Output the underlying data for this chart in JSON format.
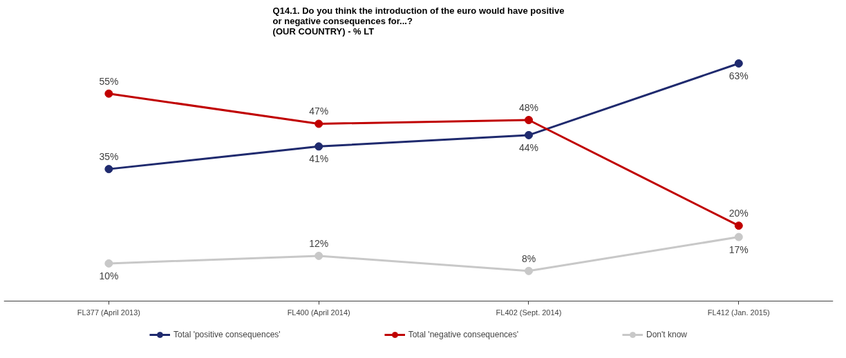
{
  "chart_data": {
    "type": "line",
    "title": "Q14.1. Do you think the introduction of the euro would have positive\nor negative consequences for...?\n(OUR COUNTRY) - % LT",
    "categories": [
      "FL377 (April 2013)",
      "FL400 (April 2014)",
      "FL402 (Sept. 2014)",
      "FL412 (Jan. 2015)"
    ],
    "series": [
      {
        "name": "Total 'positive consequences'",
        "color": "#1f2a6e",
        "values": [
          35,
          41,
          44,
          63
        ],
        "value_labels": [
          "35%",
          "41%",
          "44%",
          "63%"
        ]
      },
      {
        "name": "Total 'negative consequences'",
        "color": "#c00000",
        "values": [
          55,
          47,
          48,
          20
        ],
        "value_labels": [
          "55%",
          "47%",
          "48%",
          "20%"
        ]
      },
      {
        "name": "Don't know",
        "color": "#c8c8c8",
        "values": [
          10,
          12,
          8,
          17
        ],
        "value_labels": [
          "10%",
          "12%",
          "8%",
          "17%"
        ]
      }
    ],
    "marker": "circle",
    "legend": "bottom",
    "grid": false
  }
}
